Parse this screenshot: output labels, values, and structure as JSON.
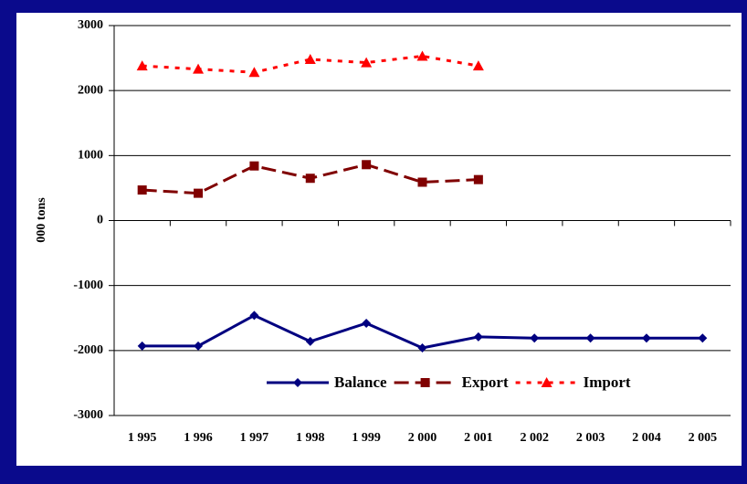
{
  "chart_data": {
    "type": "line",
    "y_label": "000 tons",
    "categories": [
      "1 995",
      "1 996",
      "1 997",
      "1 998",
      "1 999",
      "2 000",
      "2 001",
      "2 002",
      "2 003",
      "2 004",
      "2 005"
    ],
    "series": [
      {
        "name": "Balance",
        "color": "#000080",
        "marker": "diamond",
        "dash": "solid",
        "values": [
          -1930,
          -1930,
          -1460,
          -1860,
          -1580,
          -1960,
          -1790,
          -1810,
          -1810,
          -1810,
          -1810
        ]
      },
      {
        "name": "Export",
        "color": "#800000",
        "marker": "square",
        "dash": "dash",
        "values": [
          470,
          420,
          840,
          650,
          860,
          590,
          630,
          null,
          null,
          null,
          null
        ]
      },
      {
        "name": "Import",
        "color": "#ff0000",
        "marker": "triangle",
        "dash": "dot",
        "values": [
          2380,
          2330,
          2280,
          2480,
          2430,
          2530,
          2380,
          null,
          null,
          null,
          null
        ]
      }
    ],
    "ylim": [
      -3000,
      3000
    ],
    "yticks": [
      -3000,
      -2000,
      -1000,
      0,
      1000,
      2000,
      3000
    ],
    "grid": true,
    "legend": "bottom"
  }
}
